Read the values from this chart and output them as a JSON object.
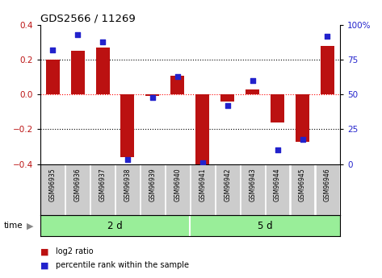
{
  "title": "GDS2566 / 11269",
  "samples": [
    "GSM96935",
    "GSM96936",
    "GSM96937",
    "GSM96938",
    "GSM96939",
    "GSM96940",
    "GSM96941",
    "GSM96942",
    "GSM96943",
    "GSM96944",
    "GSM96945",
    "GSM96946"
  ],
  "log2_ratio": [
    0.2,
    0.25,
    0.27,
    -0.36,
    -0.01,
    0.11,
    -0.42,
    -0.04,
    0.03,
    -0.16,
    -0.27,
    0.28
  ],
  "percentile_rank": [
    82,
    93,
    88,
    3,
    48,
    63,
    1,
    42,
    60,
    10,
    18,
    92
  ],
  "bar_color": "#bb1111",
  "dot_color": "#2222cc",
  "ylim": [
    -0.4,
    0.4
  ],
  "yticks_left": [
    -0.4,
    -0.2,
    0.0,
    0.2,
    0.4
  ],
  "yticks_right": [
    0,
    25,
    50,
    75,
    100
  ],
  "group1_label": "2 d",
  "group2_label": "5 d",
  "group1_count": 6,
  "group2_count": 6,
  "legend_bar_label": "log2 ratio",
  "legend_dot_label": "percentile rank within the sample",
  "time_label": "time",
  "bg_color": "#ffffff",
  "group_bg_color": "#99ee99",
  "tick_label_bg": "#cccccc",
  "dotted_lines": [
    -0.2,
    0.0,
    0.2
  ],
  "bar_width": 0.55
}
